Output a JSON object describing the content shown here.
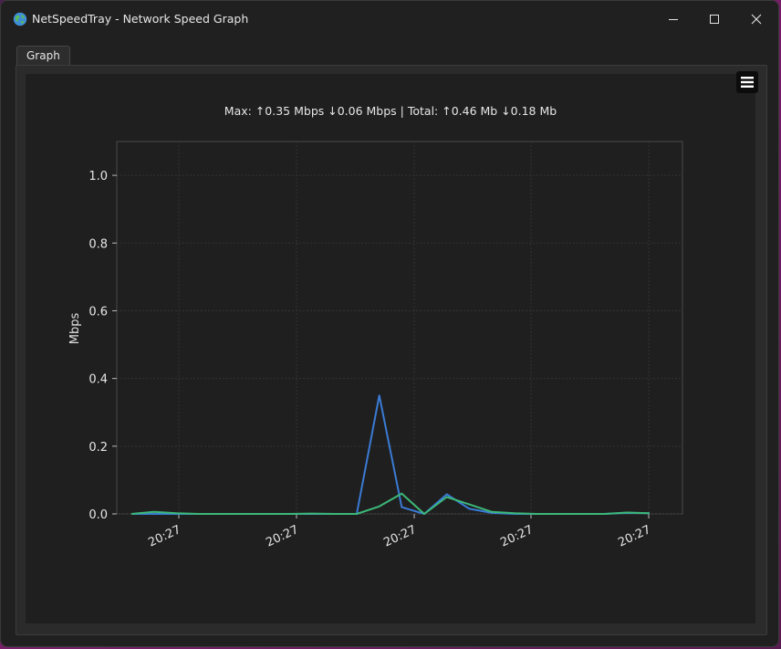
{
  "window": {
    "title": "NetSpeedTray - Network Speed Graph",
    "icon": "globe-icon",
    "controls": [
      "minimize-icon",
      "maximize-icon",
      "close-icon"
    ]
  },
  "tabs": [
    {
      "label": "Graph",
      "selected": true
    }
  ],
  "graph": {
    "menu_icon": "hamburger-menu-icon",
    "stats_text": "Max: ↑0.35 Mbps ↓0.06 Mbps | Total: ↑0.46 Mb ↓0.18 Mb"
  },
  "colors": {
    "background": "#1f1f1f",
    "upload_line": "#3a7bd5",
    "download_line": "#3cb878",
    "grid": "#3a3a3a"
  },
  "chart_data": {
    "type": "line",
    "title": "",
    "xlabel": "",
    "ylabel": "Mbps",
    "ylim": [
      0,
      1.1
    ],
    "yticks": [
      "0.0",
      "0.2",
      "0.4",
      "0.6",
      "0.8",
      "1.0"
    ],
    "xticks": [
      "20:27",
      "20:27",
      "20:27",
      "20:27",
      "20:27"
    ],
    "grid": true,
    "x": [
      0,
      1,
      2,
      3,
      4,
      5,
      6,
      7,
      8,
      9,
      10,
      11,
      12,
      13,
      14,
      15,
      16,
      17,
      18,
      19,
      20,
      21,
      22,
      23
    ],
    "series": [
      {
        "color": "#3a7bd5",
        "values": [
          0.0,
          0.0,
          0.0,
          0.0,
          0.0,
          0.0,
          0.0,
          0.0,
          0.0,
          0.0,
          0.0,
          0.35,
          0.02,
          0.0,
          0.058,
          0.015,
          0.003,
          0.0,
          0.0,
          0.0,
          0.0,
          0.0,
          0.003,
          0.002
        ]
      },
      {
        "color": "#3cb878",
        "values": [
          0.0,
          0.006,
          0.002,
          0.0,
          0.0,
          0.0,
          0.0,
          0.0,
          0.001,
          0.0,
          0.0,
          0.022,
          0.06,
          0.0,
          0.05,
          0.028,
          0.006,
          0.002,
          0.0,
          0.0,
          0.0,
          0.0,
          0.004,
          0.002
        ]
      }
    ]
  }
}
